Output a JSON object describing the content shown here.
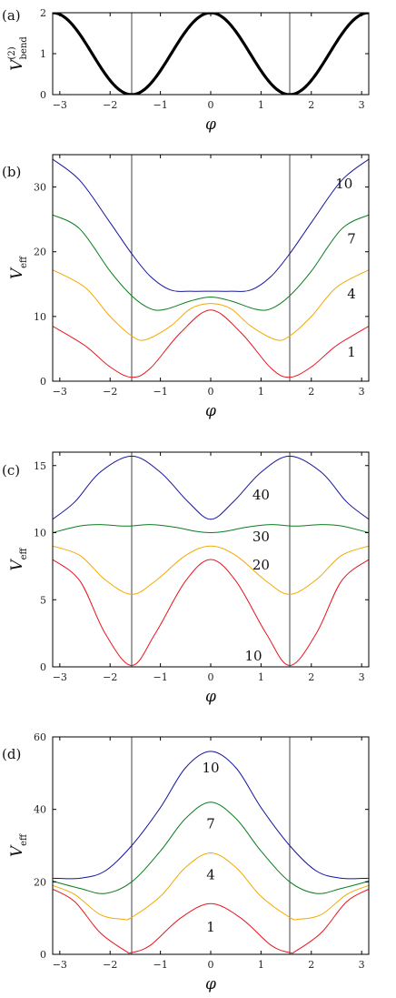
{
  "chart_data": [
    {
      "panel": "(a)",
      "type": "line",
      "xlabel": "φ",
      "ylabel": "V",
      "ylabel_sup": "(2)",
      "ylabel_sub": "bend",
      "xlim": [
        -3.14159,
        3.14159
      ],
      "ylim": [
        0,
        2
      ],
      "xticks": [
        -3,
        -2,
        -1,
        0,
        1,
        2,
        3
      ],
      "yticks": [
        0,
        1,
        2
      ],
      "vlines": [
        -1.5708,
        1.5708
      ],
      "series": [
        {
          "formula": "bend",
          "color": "#000000",
          "width": 3.2
        }
      ],
      "curve_labels": []
    },
    {
      "panel": "(b)",
      "type": "line",
      "xlabel": "φ",
      "ylabel": "V",
      "ylabel_sub": "eff",
      "xlim": [
        -3.14159,
        3.14159
      ],
      "ylim": [
        0,
        35
      ],
      "xticks": [
        -3,
        -2,
        -1,
        0,
        1,
        2,
        3
      ],
      "yticks": [
        0,
        10,
        20,
        30
      ],
      "vlines": [
        -1.5708,
        1.5708
      ],
      "series": [
        {
          "label": "1",
          "color": "#e8141e",
          "points": [
            [
              -3.14159,
              8.5
            ],
            [
              -2.5,
              5.5
            ],
            [
              -2.0,
              2.2
            ],
            [
              -1.5708,
              0.6
            ],
            [
              -1.2,
              2.0
            ],
            [
              -0.6,
              7.5
            ],
            [
              0,
              11.0
            ],
            [
              0.6,
              7.5
            ],
            [
              1.2,
              2.0
            ],
            [
              1.5708,
              0.6
            ],
            [
              2.0,
              2.2
            ],
            [
              2.5,
              5.5
            ],
            [
              3.14159,
              8.5
            ]
          ]
        },
        {
          "label": "4",
          "color": "#f5a800",
          "points": [
            [
              -3.14159,
              17.2
            ],
            [
              -2.5,
              14.5
            ],
            [
              -2.0,
              10.0
            ],
            [
              -1.5708,
              7.0
            ],
            [
              -1.3,
              6.4
            ],
            [
              -0.8,
              8.5
            ],
            [
              -0.4,
              11.2
            ],
            [
              0,
              12.0
            ],
            [
              0.4,
              11.2
            ],
            [
              0.8,
              8.5
            ],
            [
              1.3,
              6.4
            ],
            [
              1.5708,
              7.0
            ],
            [
              2.0,
              10.0
            ],
            [
              2.5,
              14.5
            ],
            [
              3.14159,
              17.2
            ]
          ]
        },
        {
          "label": "7",
          "color": "#0a7d1e",
          "points": [
            [
              -3.14159,
              25.7
            ],
            [
              -2.6,
              23.5
            ],
            [
              -2.0,
              17.0
            ],
            [
              -1.5708,
              13.2
            ],
            [
              -1.2,
              11.2
            ],
            [
              -0.9,
              11.1
            ],
            [
              -0.4,
              12.4
            ],
            [
              0,
              13.0
            ],
            [
              0.4,
              12.4
            ],
            [
              0.9,
              11.1
            ],
            [
              1.2,
              11.2
            ],
            [
              1.5708,
              13.2
            ],
            [
              2.0,
              17.0
            ],
            [
              2.6,
              23.5
            ],
            [
              3.14159,
              25.7
            ]
          ]
        },
        {
          "label": "10",
          "color": "#1414a0",
          "points": [
            [
              -3.14159,
              34.3
            ],
            [
              -2.6,
              31.0
            ],
            [
              -2.0,
              24.5
            ],
            [
              -1.5708,
              19.7
            ],
            [
              -1.2,
              16.2
            ],
            [
              -0.8,
              14.1
            ],
            [
              -0.4,
              13.9
            ],
            [
              0,
              13.9
            ],
            [
              0.4,
              13.9
            ],
            [
              0.8,
              14.1
            ],
            [
              1.2,
              16.2
            ],
            [
              1.5708,
              19.7
            ],
            [
              2.0,
              24.5
            ],
            [
              2.6,
              31.0
            ],
            [
              3.14159,
              34.3
            ]
          ]
        }
      ],
      "curve_labels": [
        {
          "text": "10",
          "x": 2.65,
          "y": 30.5
        },
        {
          "text": "7",
          "x": 2.8,
          "y": 22.0
        },
        {
          "text": "4",
          "x": 2.8,
          "y": 13.5
        },
        {
          "text": "1",
          "x": 2.8,
          "y": 4.5
        }
      ]
    },
    {
      "panel": "(c)",
      "type": "line",
      "xlabel": "φ",
      "ylabel": "V",
      "ylabel_sub": "eff",
      "xlim": [
        -3.14159,
        3.14159
      ],
      "ylim": [
        0,
        16
      ],
      "xticks": [
        -3,
        -2,
        -1,
        0,
        1,
        2,
        3
      ],
      "yticks": [
        0,
        5,
        10,
        15
      ],
      "vlines": [
        -1.5708,
        1.5708
      ],
      "series": [
        {
          "label": "10",
          "color": "#e8141e",
          "points": [
            [
              -3.14159,
              8.0
            ],
            [
              -2.6,
              6.4
            ],
            [
              -2.1,
              2.5
            ],
            [
              -1.5708,
              0.1
            ],
            [
              -1.1,
              2.5
            ],
            [
              -0.5,
              6.4
            ],
            [
              0,
              8.0
            ],
            [
              0.5,
              6.4
            ],
            [
              1.1,
              2.5
            ],
            [
              1.5708,
              0.1
            ],
            [
              2.1,
              2.5
            ],
            [
              2.6,
              6.4
            ],
            [
              3.14159,
              8.0
            ]
          ]
        },
        {
          "label": "20",
          "color": "#f5a800",
          "points": [
            [
              -3.14159,
              9.0
            ],
            [
              -2.6,
              8.3
            ],
            [
              -2.1,
              6.5
            ],
            [
              -1.5708,
              5.4
            ],
            [
              -1.1,
              6.4
            ],
            [
              -0.5,
              8.3
            ],
            [
              0,
              9.0
            ],
            [
              0.5,
              8.3
            ],
            [
              1.1,
              6.4
            ],
            [
              1.5708,
              5.4
            ],
            [
              2.1,
              6.5
            ],
            [
              2.6,
              8.3
            ],
            [
              3.14159,
              9.0
            ]
          ]
        },
        {
          "label": "30",
          "color": "#0a7d1e",
          "points": [
            [
              -3.14159,
              10.0
            ],
            [
              -2.6,
              10.5
            ],
            [
              -2.2,
              10.6
            ],
            [
              -1.8,
              10.5
            ],
            [
              -1.5708,
              10.5
            ],
            [
              -1.2,
              10.6
            ],
            [
              -0.7,
              10.4
            ],
            [
              -0.3,
              10.1
            ],
            [
              0,
              10.0
            ],
            [
              0.3,
              10.1
            ],
            [
              0.7,
              10.4
            ],
            [
              1.2,
              10.6
            ],
            [
              1.5708,
              10.5
            ],
            [
              1.8,
              10.5
            ],
            [
              2.2,
              10.6
            ],
            [
              2.6,
              10.5
            ],
            [
              3.14159,
              10.0
            ]
          ]
        },
        {
          "label": "40",
          "color": "#1414a0",
          "points": [
            [
              -3.14159,
              11.0
            ],
            [
              -2.7,
              12.3
            ],
            [
              -2.2,
              14.5
            ],
            [
              -1.5708,
              15.7
            ],
            [
              -1.0,
              14.5
            ],
            [
              -0.45,
              12.3
            ],
            [
              0,
              11.0
            ],
            [
              0.45,
              12.3
            ],
            [
              1.0,
              14.5
            ],
            [
              1.5708,
              15.7
            ],
            [
              2.2,
              14.5
            ],
            [
              2.7,
              12.3
            ],
            [
              3.14159,
              11.0
            ]
          ]
        }
      ],
      "curve_labels": [
        {
          "text": "40",
          "x": 1.0,
          "y": 12.8
        },
        {
          "text": "30",
          "x": 1.0,
          "y": 9.7
        },
        {
          "text": "20",
          "x": 1.0,
          "y": 7.6
        },
        {
          "text": "10",
          "x": 0.85,
          "y": 0.8
        }
      ]
    },
    {
      "panel": "(d)",
      "type": "line",
      "xlabel": "φ",
      "ylabel": "V",
      "ylabel_sub": "eff",
      "xlim": [
        -3.14159,
        3.14159
      ],
      "ylim": [
        0,
        60
      ],
      "xticks": [
        -3,
        -2,
        -1,
        0,
        1,
        2,
        3
      ],
      "yticks": [
        0,
        20,
        40,
        60
      ],
      "vlines": [
        -1.5708,
        1.5708
      ],
      "series": [
        {
          "label": "1",
          "color": "#e8141e",
          "points": [
            [
              -3.14159,
              18.0
            ],
            [
              -2.7,
              14.5
            ],
            [
              -2.2,
              6.0
            ],
            [
              -1.7,
              1.0
            ],
            [
              -1.5708,
              0.5
            ],
            [
              -1.2,
              2.5
            ],
            [
              -0.6,
              10.0
            ],
            [
              0,
              14.0
            ],
            [
              0.6,
              10.0
            ],
            [
              1.2,
              2.5
            ],
            [
              1.5708,
              0.5
            ],
            [
              1.7,
              1.0
            ],
            [
              2.2,
              6.0
            ],
            [
              2.7,
              14.5
            ],
            [
              3.14159,
              18.0
            ]
          ]
        },
        {
          "label": "4",
          "color": "#f5a800",
          "points": [
            [
              -3.14159,
              19.0
            ],
            [
              -2.7,
              16.5
            ],
            [
              -2.2,
              11.0
            ],
            [
              -1.75,
              9.7
            ],
            [
              -1.5708,
              10.2
            ],
            [
              -1.0,
              16.0
            ],
            [
              -0.5,
              24.0
            ],
            [
              0,
              28.0
            ],
            [
              0.5,
              24.0
            ],
            [
              1.0,
              16.0
            ],
            [
              1.5708,
              10.2
            ],
            [
              1.75,
              9.7
            ],
            [
              2.2,
              11.0
            ],
            [
              2.7,
              16.5
            ],
            [
              3.14159,
              19.0
            ]
          ]
        },
        {
          "label": "7",
          "color": "#0a7d1e",
          "points": [
            [
              -3.14159,
              20.2
            ],
            [
              -2.6,
              18.2
            ],
            [
              -2.1,
              16.8
            ],
            [
              -1.5708,
              20.0
            ],
            [
              -1.0,
              28.5
            ],
            [
              -0.5,
              37.5
            ],
            [
              0,
              42.0
            ],
            [
              0.5,
              37.5
            ],
            [
              1.0,
              28.5
            ],
            [
              1.5708,
              20.0
            ],
            [
              2.1,
              16.8
            ],
            [
              2.6,
              18.2
            ],
            [
              3.14159,
              20.2
            ]
          ]
        },
        {
          "label": "10",
          "color": "#1414a0",
          "points": [
            [
              -3.14159,
              21.0
            ],
            [
              -2.6,
              21.0
            ],
            [
              -2.1,
              23.0
            ],
            [
              -1.5708,
              30.0
            ],
            [
              -1.0,
              40.5
            ],
            [
              -0.5,
              51.5
            ],
            [
              0,
              56.0
            ],
            [
              0.5,
              51.5
            ],
            [
              1.0,
              40.5
            ],
            [
              1.5708,
              30.0
            ],
            [
              2.1,
              23.0
            ],
            [
              2.6,
              21.0
            ],
            [
              3.14159,
              21.0
            ]
          ]
        }
      ],
      "curve_labels": [
        {
          "text": "10",
          "x": 0,
          "y": 51.5
        },
        {
          "text": "7",
          "x": 0,
          "y": 36.0
        },
        {
          "text": "4",
          "x": 0,
          "y": 22.0
        },
        {
          "text": "1",
          "x": 0,
          "y": 7.5
        }
      ]
    }
  ]
}
